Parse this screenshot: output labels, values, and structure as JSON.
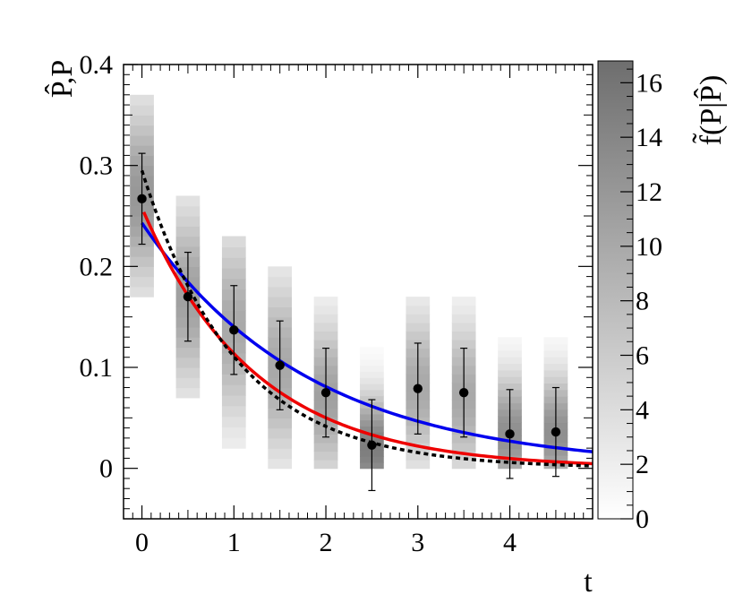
{
  "chart_data": {
    "type": "scatter",
    "xlabel": "t",
    "ylabel": "P̂,P",
    "xlim": [
      -0.2,
      4.9
    ],
    "ylim": [
      -0.05,
      0.4
    ],
    "x_ticks": [
      "0",
      "1",
      "2",
      "3",
      "4"
    ],
    "y_ticks": [
      "0",
      "0.1",
      "0.2",
      "0.3",
      "0.4"
    ],
    "points": {
      "x": [
        0,
        0.5,
        1,
        1.5,
        2,
        2.5,
        3,
        3.5,
        4,
        4.5
      ],
      "y": [
        0.267,
        0.17,
        0.137,
        0.102,
        0.075,
        0.023,
        0.079,
        0.075,
        0.034,
        0.036
      ],
      "err": [
        0.045,
        0.044,
        0.044,
        0.044,
        0.044,
        0.045,
        0.045,
        0.044,
        0.044,
        0.044
      ]
    },
    "curves": [
      {
        "color": "#0000ee",
        "style": "solid",
        "amplitude": 0.243,
        "decay": 0.55,
        "x_range": [
          0,
          4.9
        ]
      },
      {
        "color": "#ee0000",
        "style": "solid",
        "amplitude": 0.258,
        "decay": 0.82,
        "x_range": [
          0.02,
          4.9
        ]
      },
      {
        "color": "#000000",
        "style": "dashed",
        "amplitude": 0.295,
        "decay": 0.98,
        "x_range": [
          0.0,
          4.9
        ]
      }
    ],
    "density_columns": {
      "x_centers": [
        0,
        0.5,
        1,
        1.5,
        2,
        2.5,
        3,
        3.5,
        4,
        4.5
      ],
      "y_range": [
        [
          0.17,
          0.37
        ],
        [
          0.07,
          0.27
        ],
        [
          0.02,
          0.23
        ],
        [
          0.0,
          0.2
        ],
        [
          0.0,
          0.17
        ],
        [
          0.0,
          0.12
        ],
        [
          0.0,
          0.17
        ],
        [
          0.0,
          0.17
        ],
        [
          0.0,
          0.13
        ],
        [
          0.0,
          0.13
        ]
      ],
      "peak": [
        0.27,
        0.17,
        0.14,
        0.1,
        0.07,
        0.02,
        0.08,
        0.07,
        0.035,
        0.035
      ],
      "max_density": [
        12,
        11,
        10,
        10,
        11,
        15,
        10,
        10,
        13,
        13
      ]
    },
    "colorbar": {
      "label": "f̃(P|P̂)",
      "range": [
        0,
        16.8
      ],
      "ticks": [
        "0",
        "2",
        "4",
        "6",
        "8",
        "10",
        "12",
        "14",
        "16"
      ]
    }
  }
}
